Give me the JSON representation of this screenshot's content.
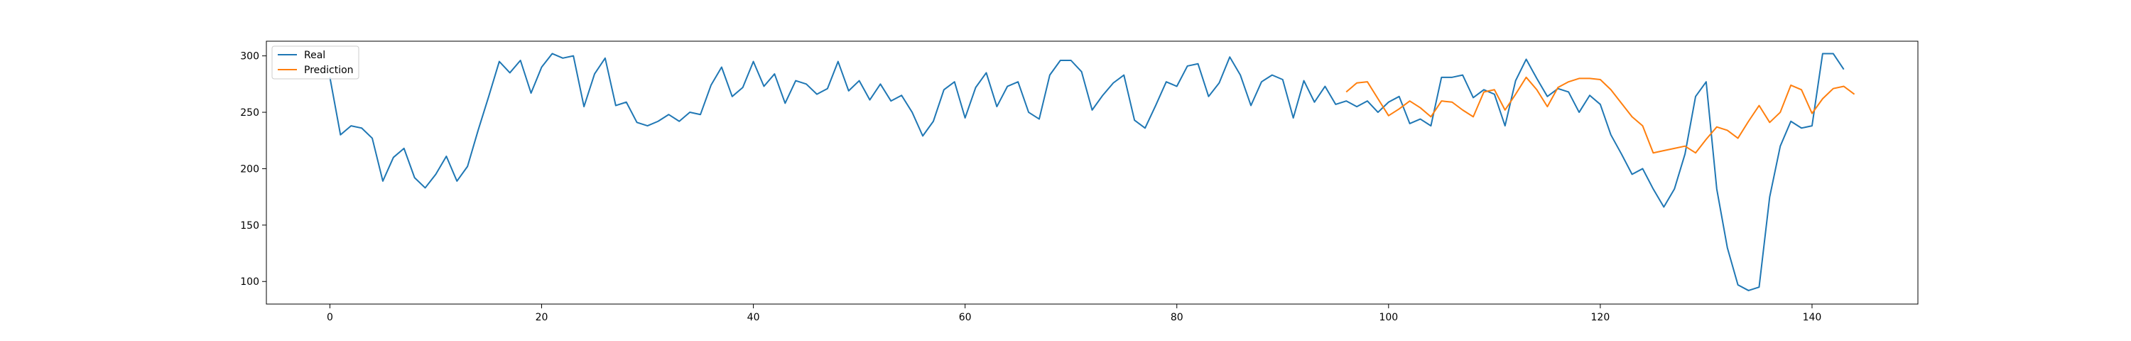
{
  "chart_data": {
    "type": "line",
    "title": "",
    "xlabel": "",
    "ylabel": "",
    "xlim": [
      -6,
      150
    ],
    "ylim": [
      80,
      313
    ],
    "x_ticks": [
      0,
      20,
      40,
      60,
      80,
      100,
      120,
      140
    ],
    "y_ticks": [
      100,
      150,
      200,
      250,
      300
    ],
    "grid": false,
    "legend_position": "top-left",
    "series": [
      {
        "name": "Real",
        "color": "#1f77b4",
        "x_start": 0,
        "values": [
          281,
          230,
          238,
          236,
          227,
          189,
          210,
          218,
          192,
          183,
          195,
          211,
          189,
          202,
          234,
          264,
          295,
          285,
          296,
          267,
          290,
          302,
          298,
          300,
          255,
          284,
          298,
          256,
          259,
          241,
          238,
          242,
          248,
          242,
          250,
          248,
          274,
          290,
          264,
          272,
          295,
          273,
          284,
          258,
          278,
          275,
          266,
          271,
          295,
          269,
          278,
          261,
          275,
          260,
          265,
          250,
          229,
          242,
          270,
          277,
          245,
          272,
          285,
          255,
          273,
          277,
          250,
          244,
          283,
          296,
          296,
          286,
          252,
          265,
          276,
          283,
          243,
          236,
          256,
          277,
          273,
          291,
          293,
          264,
          276,
          299,
          283,
          256,
          277,
          283,
          279,
          245,
          278,
          259,
          273,
          257,
          260,
          255,
          260,
          250,
          259,
          264,
          240,
          244,
          238,
          281,
          281,
          283,
          263,
          270,
          266,
          238,
          278,
          297,
          280,
          264,
          271,
          268,
          250,
          265,
          257,
          230,
          213,
          195,
          200,
          182,
          166,
          182,
          213,
          264,
          277,
          182,
          130,
          97,
          92,
          95,
          175,
          220,
          242,
          236,
          238,
          302,
          302,
          288
        ]
      },
      {
        "name": "Prediction",
        "color": "#ff7f0e",
        "x_start": 96,
        "values": [
          268,
          276,
          277,
          262,
          247,
          253,
          260,
          254,
          246,
          260,
          259,
          252,
          246,
          268,
          270,
          252,
          266,
          281,
          270,
          255,
          272,
          277,
          280,
          280,
          279,
          270,
          258,
          246,
          238,
          214,
          216,
          218,
          220,
          214,
          226,
          237,
          234,
          227,
          242,
          256,
          241,
          250,
          274,
          270,
          249,
          262,
          271,
          273,
          266
        ]
      }
    ]
  }
}
